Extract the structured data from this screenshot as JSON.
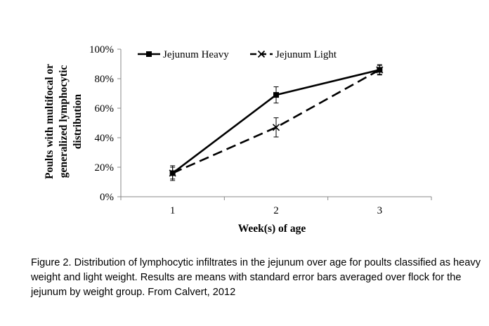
{
  "chart_data": {
    "type": "line",
    "x": [
      "1",
      "2",
      "3"
    ],
    "ylabel": "Poults with multifocal or generalized lymphocytic distribution",
    "ylabel_lines": [
      "Poults with multifocal or",
      "generalized lymphocytic",
      "distribution"
    ],
    "xlabel": "Week(s) of age",
    "ylim": [
      0,
      100
    ],
    "yticks": [
      "0%",
      "20%",
      "40%",
      "60%",
      "80%",
      "100%"
    ],
    "legend_position": "top",
    "series": [
      {
        "name": "Jejunum Heavy",
        "values": [
          16,
          69,
          86
        ],
        "errors": [
          4,
          5.5,
          3.5
        ],
        "marker": "square",
        "line_style": "solid",
        "color": "#000000"
      },
      {
        "name": "Jejunum Light",
        "values": [
          16,
          47,
          86
        ],
        "errors": [
          5,
          6.5,
          3
        ],
        "marker": "x",
        "line_style": "dashed",
        "color": "#000000"
      }
    ]
  },
  "caption": "Figure 2. Distribution of lymphocytic infiltrates in the jejunum over age for poults classified as heavy weight and light weight.  Results are means with standard error bars averaged over flock for the jejunum by weight group. From Calvert, 2012"
}
